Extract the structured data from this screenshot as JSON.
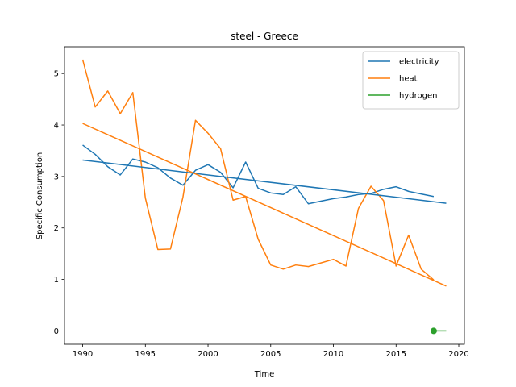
{
  "chart_data": {
    "type": "line",
    "title": "steel - Greece",
    "xlabel": "Time",
    "ylabel": "Specific Consumption",
    "xlim": [
      1988.55,
      2020.45
    ],
    "ylim": [
      -0.26,
      5.52
    ],
    "xticks": [
      1990,
      1995,
      2000,
      2005,
      2010,
      2015,
      2020
    ],
    "yticks": [
      0,
      1,
      2,
      3,
      4,
      5
    ],
    "grid": false,
    "legend_position": "top-right",
    "series": [
      {
        "name": "electricity",
        "color": "#1f77b4",
        "x": [
          1990,
          1991,
          1992,
          1993,
          1994,
          1995,
          1996,
          1997,
          1998,
          1999,
          2000,
          2001,
          2002,
          2003,
          2004,
          2005,
          2006,
          2007,
          2008,
          2009,
          2010,
          2011,
          2012,
          2013,
          2014,
          2015,
          2016,
          2017,
          2018
        ],
        "y": [
          3.61,
          3.43,
          3.19,
          3.03,
          3.34,
          3.28,
          3.17,
          2.97,
          2.83,
          3.12,
          3.23,
          3.08,
          2.78,
          3.28,
          2.77,
          2.68,
          2.65,
          2.8,
          2.47,
          2.52,
          2.57,
          2.6,
          2.65,
          2.67,
          2.75,
          2.8,
          2.71,
          2.66,
          2.61
        ]
      },
      {
        "name": "heat",
        "color": "#ff7f0e",
        "x": [
          1990,
          1991,
          1992,
          1993,
          1994,
          1995,
          1996,
          1997,
          1998,
          1999,
          2000,
          2001,
          2002,
          2003,
          2004,
          2005,
          2006,
          2007,
          2008,
          2009,
          2010,
          2011,
          2012,
          2013,
          2014,
          2015,
          2016,
          2017,
          2018
        ],
        "y": [
          5.27,
          4.35,
          4.66,
          4.22,
          4.63,
          2.58,
          1.58,
          1.59,
          2.6,
          4.09,
          3.84,
          3.54,
          2.54,
          2.61,
          1.78,
          1.28,
          1.2,
          1.28,
          1.25,
          1.32,
          1.39,
          1.26,
          2.38,
          2.81,
          2.53,
          1.26,
          1.86,
          1.2,
          0.99
        ]
      },
      {
        "name": "hydrogen",
        "color": "#2ca02c",
        "x": [
          2018,
          2019
        ],
        "y": [
          0.0,
          0.0
        ],
        "marker_at_first": true
      }
    ],
    "trend_lines": [
      {
        "series": "electricity",
        "color": "#1f77b4",
        "x": [
          1990,
          2019
        ],
        "y": [
          3.32,
          2.48
        ]
      },
      {
        "series": "heat",
        "color": "#ff7f0e",
        "x": [
          1990,
          2019
        ],
        "y": [
          4.03,
          0.87
        ]
      }
    ]
  }
}
